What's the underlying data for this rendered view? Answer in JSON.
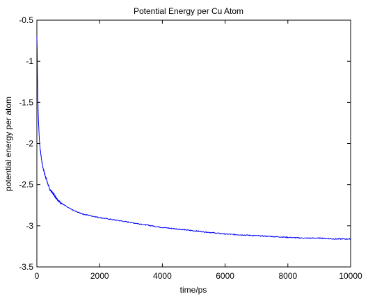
{
  "chart_data": {
    "type": "line",
    "title": "Potential Energy per Cu Atom",
    "xlabel": "time/ps",
    "ylabel": "potential energy per atom",
    "xlim": [
      0,
      10000
    ],
    "ylim": [
      -3.5,
      -0.5
    ],
    "xticks": [
      0,
      2000,
      4000,
      6000,
      8000,
      10000
    ],
    "yticks": [
      -0.5,
      -1,
      -1.5,
      -2,
      -2.5,
      -3,
      -3.5
    ],
    "xtick_labels": [
      "0",
      "2000",
      "4000",
      "6000",
      "8000",
      "10000"
    ],
    "ytick_labels": [
      "-0.5",
      "-1",
      "-1.5",
      "-2",
      "-2.5",
      "-3",
      "-3.5"
    ],
    "grid": false,
    "legend": "none",
    "line_color": "#0000ff",
    "series": [
      {
        "x": [
          0,
          10,
          20,
          40,
          60,
          80,
          100,
          150,
          200,
          250,
          300,
          400,
          500,
          600,
          700,
          800,
          1000,
          1200,
          1500,
          2000,
          2500,
          3000,
          3500,
          4000,
          4500,
          5000,
          5500,
          6000,
          6500,
          7000,
          7500,
          8000,
          8500,
          9000,
          9500,
          10000
        ],
        "y": [
          -0.7,
          -0.85,
          -1.2,
          -1.6,
          -1.8,
          -1.95,
          -2.05,
          -2.2,
          -2.3,
          -2.37,
          -2.43,
          -2.55,
          -2.6,
          -2.65,
          -2.7,
          -2.73,
          -2.78,
          -2.82,
          -2.86,
          -2.9,
          -2.93,
          -2.96,
          -2.99,
          -3.02,
          -3.04,
          -3.06,
          -3.08,
          -3.1,
          -3.11,
          -3.12,
          -3.13,
          -3.14,
          -3.15,
          -3.15,
          -3.16,
          -3.16
        ]
      }
    ]
  }
}
